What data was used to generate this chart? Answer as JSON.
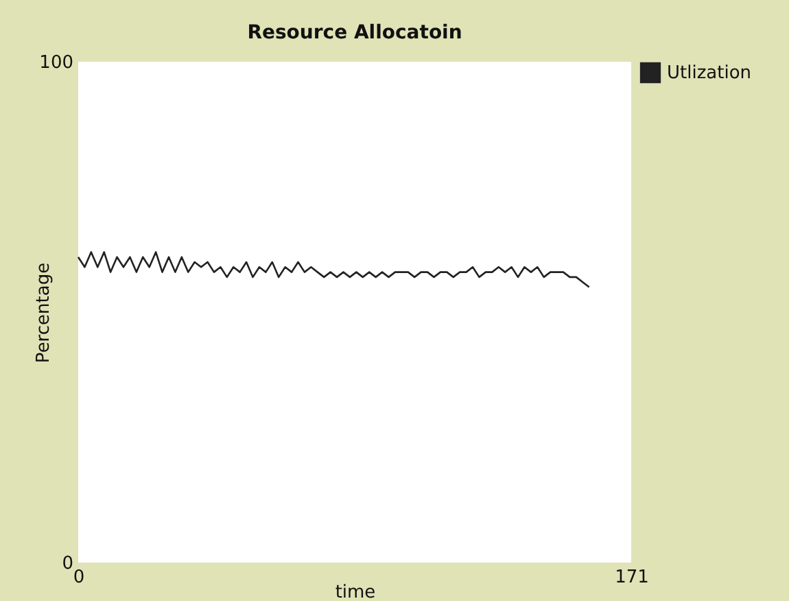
{
  "chart_data": {
    "type": "line",
    "title": "Resource Allocatoin",
    "xlabel": "time",
    "ylabel": "Percentage",
    "xlim": [
      0,
      171
    ],
    "ylim": [
      0,
      100
    ],
    "xticks": [
      0,
      171
    ],
    "yticks": [
      0,
      100
    ],
    "legend": "top right",
    "line_style": "solid",
    "x": [
      0,
      2,
      4,
      6,
      8,
      10,
      12,
      14,
      16,
      18,
      20,
      22,
      24,
      26,
      28,
      30,
      32,
      34,
      36,
      38,
      40,
      42,
      44,
      46,
      48,
      50,
      52,
      54,
      56,
      58,
      60,
      62,
      64,
      66,
      68,
      70,
      72,
      74,
      76,
      78,
      80,
      82,
      84,
      86,
      88,
      90,
      92,
      94,
      96,
      98,
      100,
      102,
      104,
      106,
      108,
      110,
      112,
      114,
      116,
      118,
      120,
      122,
      124,
      126,
      128,
      130,
      132,
      134,
      136,
      138,
      140,
      142,
      144,
      146,
      148,
      150,
      152,
      154,
      156,
      158
    ],
    "series": [
      {
        "name": "Utlization",
        "color": "#222222",
        "values": [
          61,
          59,
          62,
          59,
          62,
          58,
          61,
          59,
          61,
          58,
          61,
          59,
          62,
          58,
          61,
          58,
          61,
          58,
          60,
          59,
          60,
          58,
          59,
          57,
          59,
          58,
          60,
          57,
          59,
          58,
          60,
          57,
          59,
          58,
          60,
          58,
          59,
          58,
          57,
          58,
          57,
          58,
          57,
          58,
          57,
          58,
          57,
          58,
          57,
          58,
          58,
          58,
          57,
          58,
          58,
          57,
          58,
          58,
          57,
          58,
          58,
          59,
          57,
          58,
          58,
          59,
          58,
          59,
          57,
          59,
          58,
          59,
          57,
          58,
          58,
          58,
          57,
          57,
          56,
          55
        ]
      }
    ]
  }
}
